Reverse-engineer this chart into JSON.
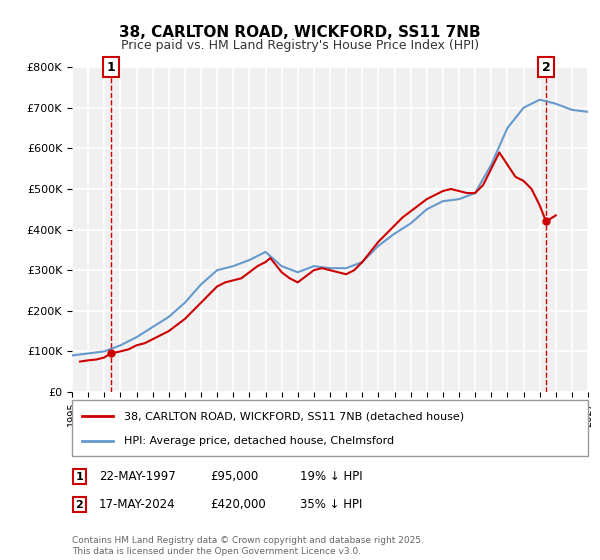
{
  "title": "38, CARLTON ROAD, WICKFORD, SS11 7NB",
  "subtitle": "Price paid vs. HM Land Registry's House Price Index (HPI)",
  "legend_line1": "38, CARLTON ROAD, WICKFORD, SS11 7NB (detached house)",
  "legend_line2": "HPI: Average price, detached house, Chelmsford",
  "transaction1_label": "1",
  "transaction1_date": "22-MAY-1997",
  "transaction1_price": "£95,000",
  "transaction1_hpi": "19% ↓ HPI",
  "transaction2_label": "2",
  "transaction2_date": "17-MAY-2024",
  "transaction2_price": "£420,000",
  "transaction2_hpi": "35% ↓ HPI",
  "copyright_text": "Contains HM Land Registry data © Crown copyright and database right 2025.\nThis data is licensed under the Open Government Licence v3.0.",
  "ylim": [
    0,
    800000
  ],
  "xlim_start": 1995,
  "xlim_end": 2027,
  "price_color": "#cc0000",
  "hpi_color": "#6699cc",
  "background_color": "#f0f0f0",
  "grid_color": "#ffffff",
  "marker1_year": 1997.4,
  "marker1_price": 95000,
  "marker2_year": 2024.4,
  "marker2_price": 420000,
  "hpi_years": [
    1995,
    1996,
    1997,
    1998,
    1999,
    2000,
    2001,
    2002,
    2003,
    2004,
    2005,
    2006,
    2007,
    2008,
    2009,
    2010,
    2011,
    2012,
    2013,
    2014,
    2015,
    2016,
    2017,
    2018,
    2019,
    2020,
    2021,
    2022,
    2023,
    2024,
    2025,
    2026,
    2027
  ],
  "hpi_values": [
    90000,
    95000,
    100000,
    115000,
    135000,
    160000,
    185000,
    220000,
    265000,
    300000,
    310000,
    325000,
    345000,
    310000,
    295000,
    310000,
    305000,
    305000,
    320000,
    360000,
    390000,
    415000,
    450000,
    470000,
    475000,
    490000,
    560000,
    650000,
    700000,
    720000,
    710000,
    695000,
    690000
  ],
  "price_years": [
    1995.5,
    1996.0,
    1996.5,
    1997.0,
    1997.4,
    1998.0,
    1998.5,
    1999.0,
    1999.5,
    2000.0,
    2000.5,
    2001.0,
    2001.5,
    2002.0,
    2002.5,
    2003.0,
    2003.5,
    2004.0,
    2004.5,
    2005.0,
    2005.5,
    2006.0,
    2006.5,
    2007.0,
    2007.3,
    2008.0,
    2008.5,
    2009.0,
    2009.5,
    2010.0,
    2010.5,
    2011.0,
    2011.5,
    2012.0,
    2012.5,
    2013.0,
    2013.5,
    2014.0,
    2014.5,
    2015.0,
    2015.5,
    2016.0,
    2016.5,
    2017.0,
    2017.5,
    2018.0,
    2018.5,
    2019.0,
    2019.5,
    2020.0,
    2020.5,
    2021.0,
    2021.5,
    2022.0,
    2022.5,
    2023.0,
    2023.5,
    2024.0,
    2024.4,
    2024.8,
    2025.0
  ],
  "price_values": [
    75000,
    78000,
    80000,
    85000,
    95000,
    100000,
    105000,
    115000,
    120000,
    130000,
    140000,
    150000,
    165000,
    180000,
    200000,
    220000,
    240000,
    260000,
    270000,
    275000,
    280000,
    295000,
    310000,
    320000,
    330000,
    295000,
    280000,
    270000,
    285000,
    300000,
    305000,
    300000,
    295000,
    290000,
    300000,
    320000,
    345000,
    370000,
    390000,
    410000,
    430000,
    445000,
    460000,
    475000,
    485000,
    495000,
    500000,
    495000,
    490000,
    490000,
    510000,
    550000,
    590000,
    560000,
    530000,
    520000,
    500000,
    460000,
    420000,
    430000,
    435000
  ]
}
